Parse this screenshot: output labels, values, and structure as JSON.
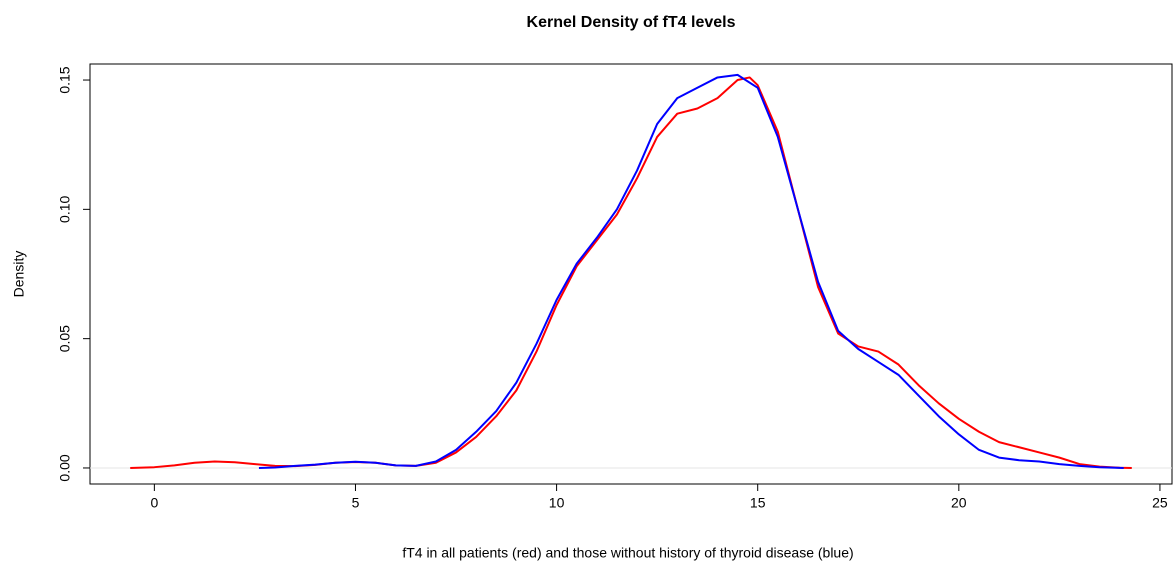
{
  "chart_data": {
    "type": "line",
    "title": "Kernel Density of fT4 levels",
    "xlabel": "fT4 in all patients (red) and those without history of thyroid disease (blue)",
    "ylabel": "Density",
    "xlim": [
      -1.6,
      25.3
    ],
    "xticks": [
      0,
      5,
      10,
      15,
      20,
      25
    ],
    "ylim": [
      -0.0062,
      0.1562
    ],
    "yticks": [
      {
        "value": 0,
        "label": "0.00"
      },
      {
        "value": 0.05,
        "label": "0.05"
      },
      {
        "value": 0.1,
        "label": "0.10"
      },
      {
        "value": 0.15,
        "label": "0.15"
      }
    ],
    "zero_line": true,
    "series": [
      {
        "color": "#ff0000",
        "x": [
          -0.6,
          0,
          0.5,
          1,
          1.5,
          2,
          2.5,
          3,
          3.5,
          4,
          4.5,
          5,
          5.5,
          6,
          6.5,
          7,
          7.5,
          8,
          8.5,
          9,
          9.5,
          10,
          10.5,
          11,
          11.5,
          12,
          12.5,
          13,
          13.5,
          14,
          14.5,
          14.8,
          15,
          15.5,
          16,
          16.5,
          17,
          17.5,
          18,
          18.5,
          19,
          19.5,
          20,
          20.5,
          21,
          21.5,
          22,
          22.5,
          23,
          23.5,
          24,
          24.3
        ],
        "values": [
          0,
          0.0003,
          0.001,
          0.002,
          0.0025,
          0.0022,
          0.0015,
          0.0008,
          0.0007,
          0.0012,
          0.002,
          0.0023,
          0.002,
          0.001,
          0.0008,
          0.002,
          0.006,
          0.012,
          0.02,
          0.03,
          0.045,
          0.063,
          0.078,
          0.088,
          0.098,
          0.112,
          0.128,
          0.137,
          0.139,
          0.143,
          0.15,
          0.151,
          0.148,
          0.13,
          0.1,
          0.07,
          0.052,
          0.047,
          0.045,
          0.04,
          0.032,
          0.025,
          0.019,
          0.014,
          0.01,
          0.008,
          0.006,
          0.004,
          0.0015,
          0.0005,
          0.0001,
          0
        ]
      },
      {
        "color": "#0000ff",
        "x": [
          2.6,
          3,
          3.5,
          4,
          4.5,
          5,
          5.5,
          6,
          6.5,
          7,
          7.5,
          8,
          8.5,
          9,
          9.5,
          10,
          10.5,
          11,
          11.5,
          12,
          12.5,
          13,
          13.5,
          14,
          14.5,
          15,
          15.5,
          16,
          16.5,
          17,
          17.5,
          18,
          18.5,
          19,
          19.5,
          20,
          20.5,
          21,
          21.5,
          22,
          22.5,
          23,
          23.5,
          24.1
        ],
        "values": [
          0,
          0.0002,
          0.0008,
          0.0013,
          0.002,
          0.0024,
          0.002,
          0.001,
          0.0008,
          0.0025,
          0.007,
          0.014,
          0.022,
          0.033,
          0.048,
          0.065,
          0.079,
          0.089,
          0.1,
          0.115,
          0.133,
          0.143,
          0.147,
          0.151,
          0.152,
          0.147,
          0.128,
          0.1,
          0.072,
          0.053,
          0.046,
          0.041,
          0.036,
          0.028,
          0.02,
          0.013,
          0.007,
          0.004,
          0.003,
          0.0025,
          0.0015,
          0.0008,
          0.0003,
          0
        ]
      }
    ]
  }
}
